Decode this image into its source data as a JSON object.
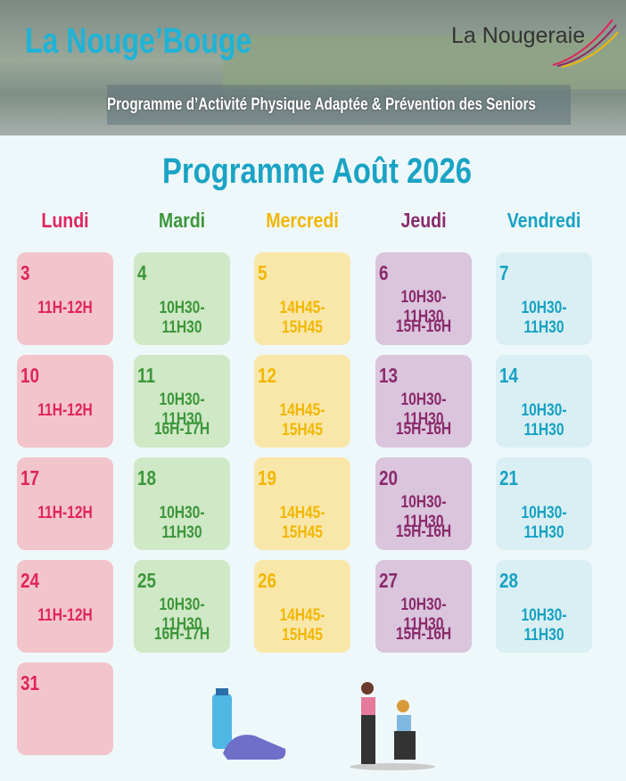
{
  "header": {
    "title": "La Nouge’Bouge",
    "logo": "La Nougeraie",
    "subtitle": "Programme d’Activité Physique Adaptée & Prévention des Seniors"
  },
  "heading": "Programme Août 2026",
  "calendar": {
    "columns": [
      {
        "day": "Lundi",
        "color": "#e0245e",
        "fill": "#f2c4cc",
        "cells": [
          {
            "date": "3",
            "slots": [
              "11H-12H"
            ]
          },
          {
            "date": "10",
            "slots": [
              "11H-12H"
            ]
          },
          {
            "date": "17",
            "slots": [
              "11H-12H"
            ]
          },
          {
            "date": "24",
            "slots": [
              "11H-12H"
            ]
          },
          {
            "date": "31",
            "slots": []
          }
        ]
      },
      {
        "day": "Mardi",
        "color": "#3d963a",
        "fill": "#cfe8c6",
        "cells": [
          {
            "date": "4",
            "slots": [
              "10H30-11H30"
            ]
          },
          {
            "date": "11",
            "slots": [
              "10H30-11H30",
              "16H-17H"
            ]
          },
          {
            "date": "18",
            "slots": [
              "10H30-11H30"
            ]
          },
          {
            "date": "25",
            "slots": [
              "10H30-11H30",
              "16H-17H"
            ]
          }
        ]
      },
      {
        "day": "Mercredi",
        "color": "#f2b705",
        "fill": "#f8e7a8",
        "cells": [
          {
            "date": "5",
            "slots": [
              "14H45-15H45"
            ]
          },
          {
            "date": "12",
            "slots": [
              "14H45-15H45"
            ]
          },
          {
            "date": "19",
            "slots": [
              "14H45-15H45"
            ]
          },
          {
            "date": "26",
            "slots": [
              "14H45-15H45"
            ]
          }
        ]
      },
      {
        "day": "Jeudi",
        "color": "#8a2a6c",
        "fill": "#dac5dc",
        "cells": [
          {
            "date": "6",
            "slots": [
              "10H30-11H30",
              "15H-16H"
            ]
          },
          {
            "date": "13",
            "slots": [
              "10H30-11H30",
              "15H-16H"
            ]
          },
          {
            "date": "20",
            "slots": [
              "10H30-11H30",
              "15H-16H"
            ]
          },
          {
            "date": "27",
            "slots": [
              "10H30-11H30",
              "15H-16H"
            ]
          }
        ]
      },
      {
        "day": "Vendredi",
        "color": "#17a2c3",
        "fill": "#d9eff4",
        "cells": [
          {
            "date": "7",
            "slots": [
              "10H30-11H30"
            ]
          },
          {
            "date": "14",
            "slots": [
              "10H30-11H30"
            ]
          },
          {
            "date": "21",
            "slots": [
              "10H30-11H30"
            ]
          },
          {
            "date": "28",
            "slots": [
              "10H30-11H30"
            ]
          }
        ]
      }
    ]
  }
}
